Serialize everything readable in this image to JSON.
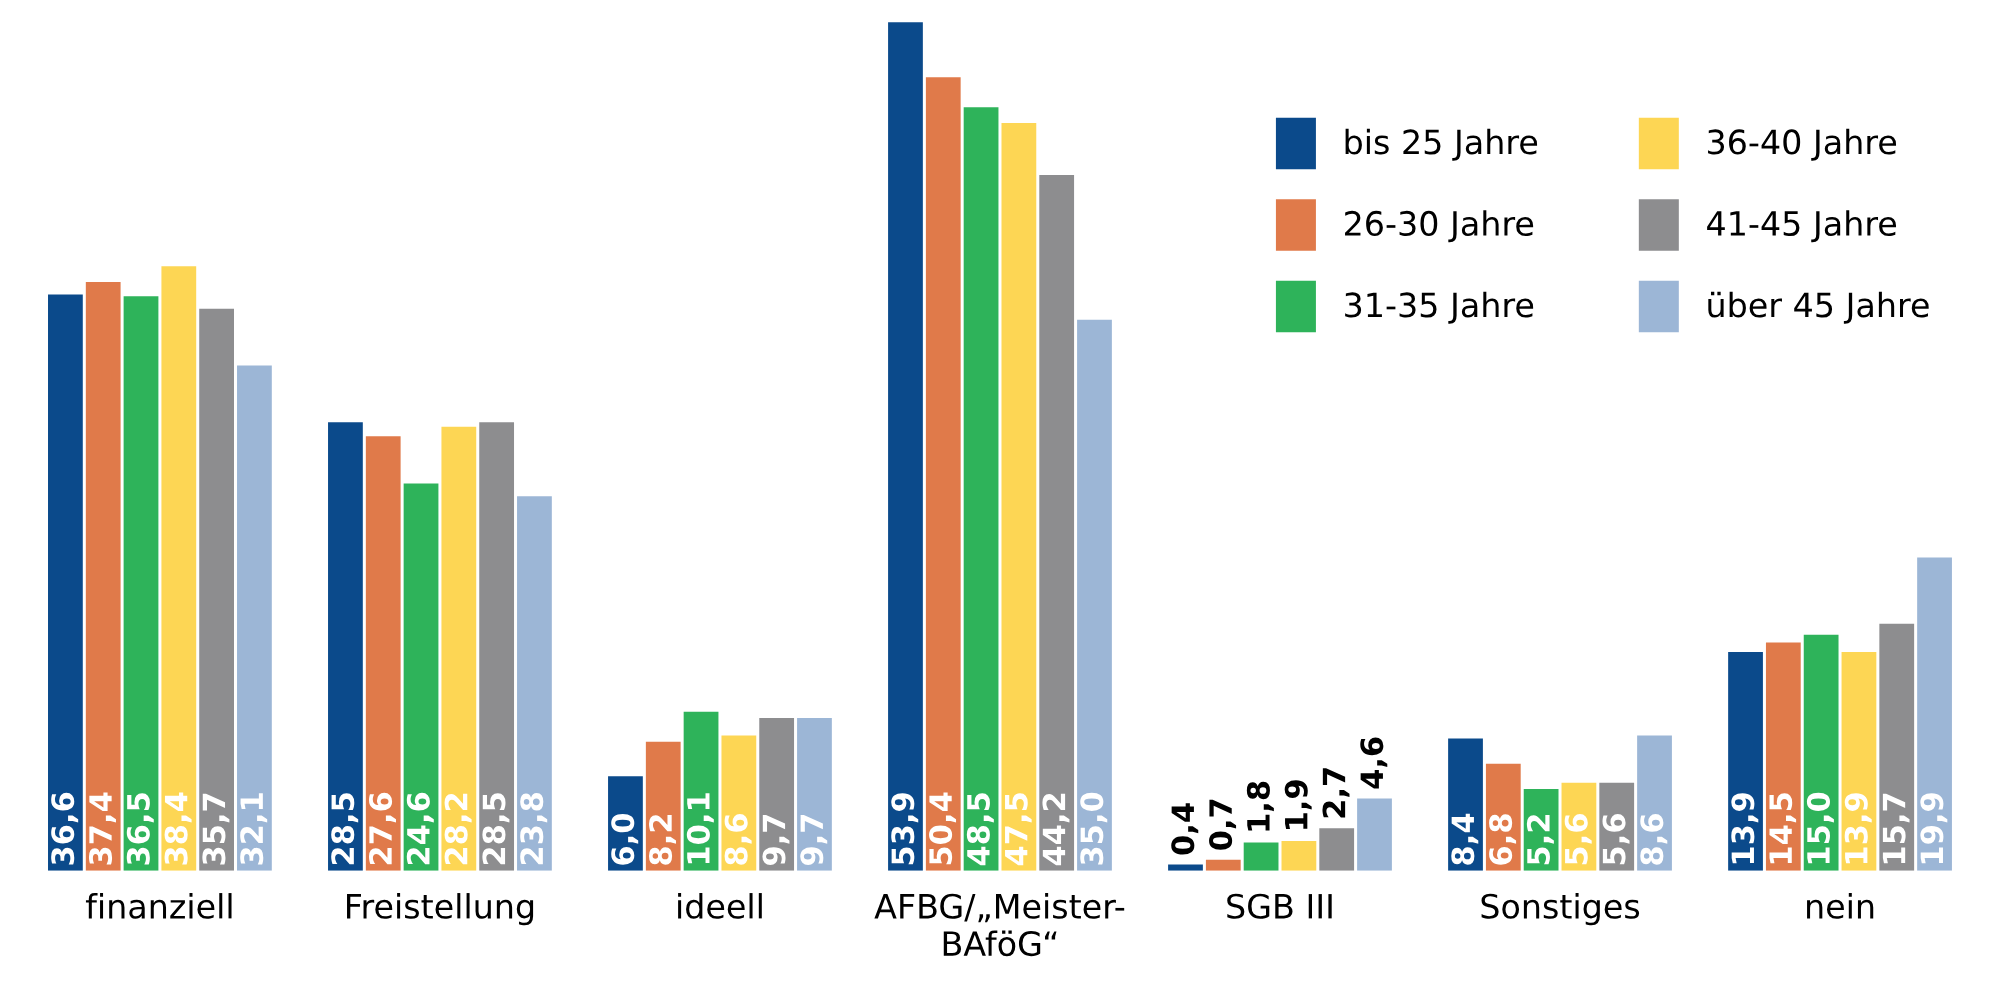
{
  "chart_data": {
    "type": "bar",
    "categories": [
      "finanziell",
      "Freistellung",
      "ideell",
      "AFBG/„Meister-\nBAföG“",
      "SGB III",
      "Sonstiges",
      "nein"
    ],
    "series": [
      {
        "name": "bis 25 Jahre",
        "color": "#0b4a8b",
        "values": [
          36.6,
          28.5,
          6.0,
          53.9,
          0.4,
          8.4,
          13.9
        ],
        "value_labels": [
          "36,6",
          "28,5",
          "6,0",
          "53,9",
          "0,4",
          "8,4",
          "13,9"
        ]
      },
      {
        "name": "26-30 Jahre",
        "color": "#e07a4a",
        "values": [
          37.4,
          27.6,
          8.2,
          50.4,
          0.7,
          6.8,
          14.5
        ],
        "value_labels": [
          "37,4",
          "27,6",
          "8,2",
          "50,4",
          "0,7",
          "6,8",
          "14,5"
        ]
      },
      {
        "name": "31-35 Jahre",
        "color": "#2eb35a",
        "values": [
          36.5,
          24.6,
          10.1,
          48.5,
          1.8,
          5.2,
          15.0
        ],
        "value_labels": [
          "36,5",
          "24,6",
          "10,1",
          "48,5",
          "1,8",
          "5,2",
          "15,0"
        ]
      },
      {
        "name": "36-40 Jahre",
        "color": "#fdd654",
        "values": [
          38.4,
          28.2,
          8.6,
          47.5,
          1.9,
          5.6,
          13.9
        ],
        "value_labels": [
          "38,4",
          "28,2",
          "8,6",
          "47,5",
          "1,9",
          "5,6",
          "13,9"
        ]
      },
      {
        "name": "41-45 Jahre",
        "color": "#8d8d8f",
        "values": [
          35.7,
          28.5,
          9.7,
          44.2,
          2.7,
          5.6,
          15.7
        ],
        "value_labels": [
          "35,7",
          "28,5",
          "9,7",
          "44,2",
          "2,7",
          "5,6",
          "15,7"
        ]
      },
      {
        "name": "über 45 Jahre",
        "color": "#9cb6d6",
        "values": [
          32.1,
          23.8,
          9.7,
          35.0,
          4.6,
          8.6,
          19.9
        ],
        "value_labels": [
          "32,1",
          "23,8",
          "9,7",
          "35,0",
          "4,6",
          "8,6",
          "19,9"
        ]
      }
    ],
    "legend": "top right",
    "grid": false
  }
}
